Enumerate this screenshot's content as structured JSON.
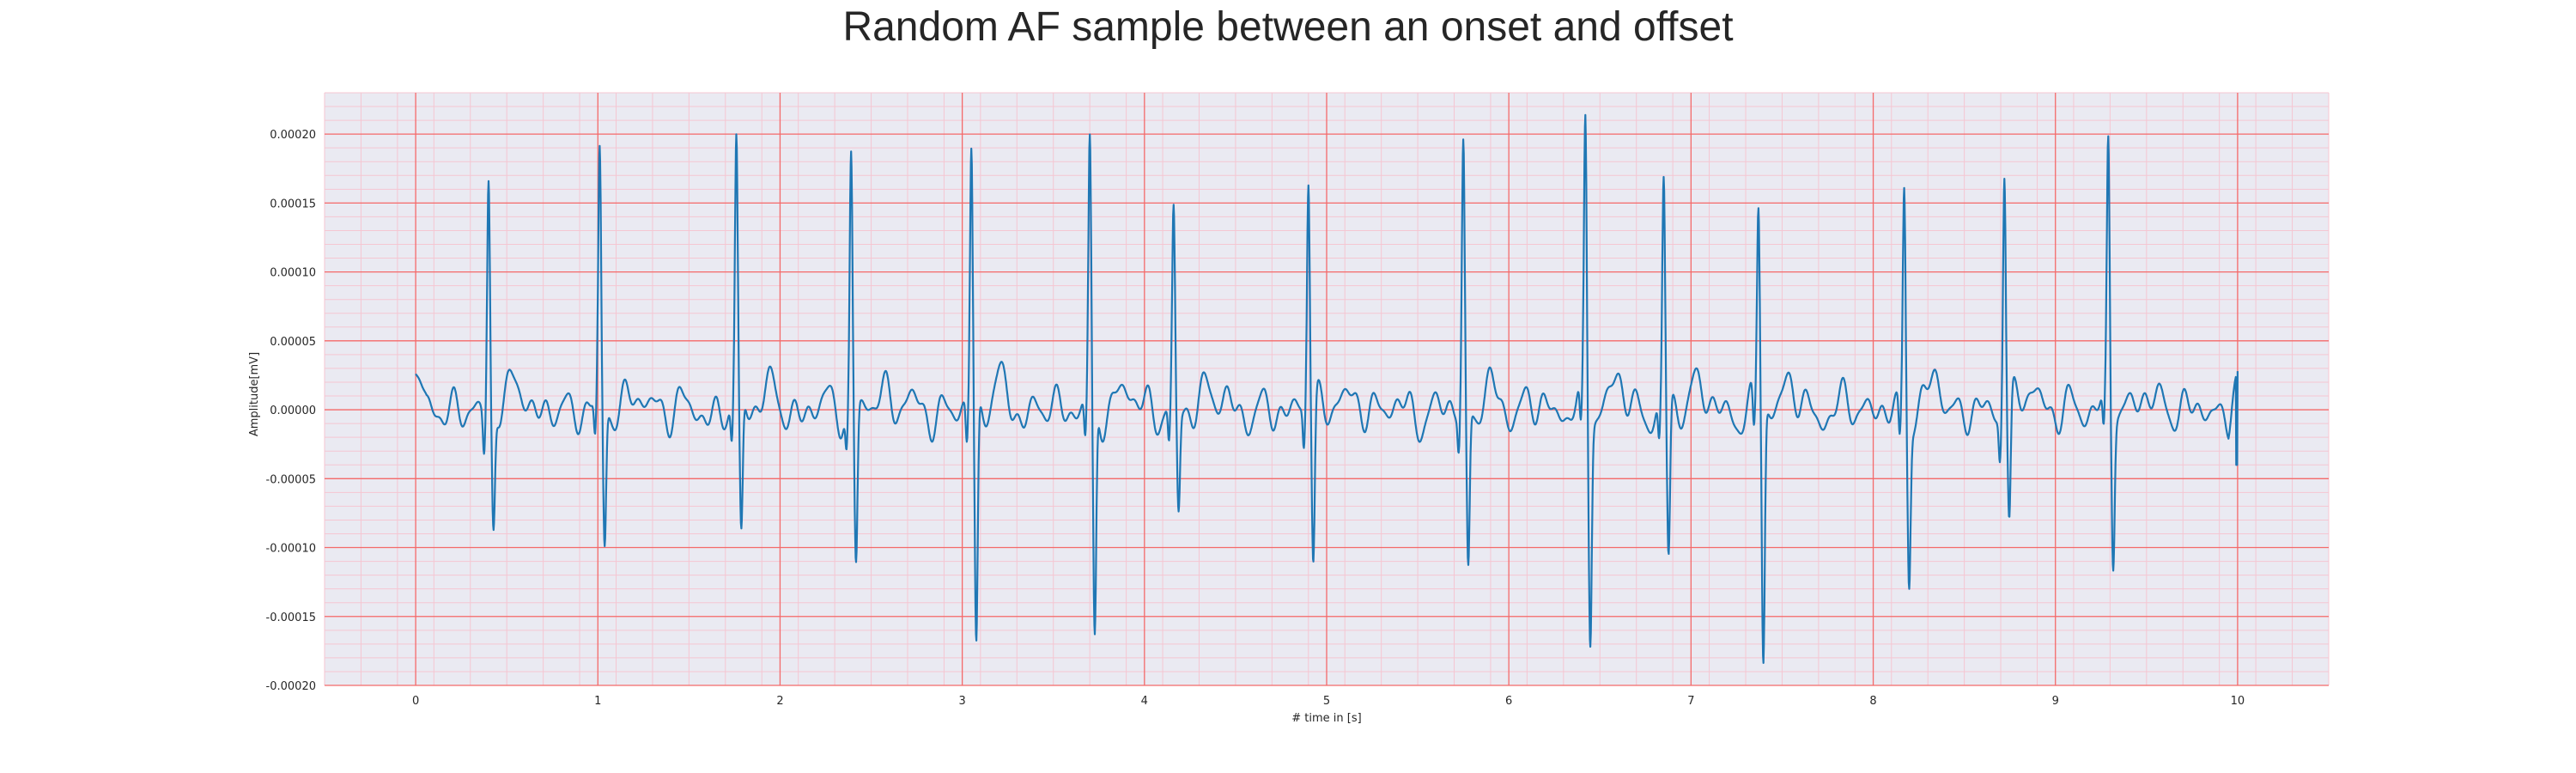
{
  "chart_data": {
    "type": "line",
    "title": "Random AF sample between an onset and offset",
    "xlabel": "# time in [s]",
    "ylabel": "Amplitude[mV]",
    "xlim": [
      -0.5,
      10.5
    ],
    "ylim": [
      -0.0002,
      0.00023
    ],
    "x_ticks": [
      0,
      1,
      2,
      3,
      4,
      5,
      6,
      7,
      8,
      9,
      10
    ],
    "x_tick_labels": [
      "0",
      "1",
      "2",
      "3",
      "4",
      "5",
      "6",
      "7",
      "8",
      "9",
      "10"
    ],
    "y_ticks": [
      -0.0002,
      -0.00015,
      -0.0001,
      -5e-05,
      0,
      5e-05,
      0.0001,
      0.00015,
      0.0002
    ],
    "y_tick_labels": [
      "-0.00020",
      "-0.00015",
      "-0.00010",
      "-0.00005",
      "0.00000",
      "0.00005",
      "0.00010",
      "0.00015",
      "0.00020"
    ],
    "grid": "major red, minor pink",
    "series": [
      {
        "color": "#1f77b4",
        "x_start": 0,
        "x_end": 10,
        "baseline_start": 2.6e-05,
        "baseline_end": 2.8e-05,
        "beats": [
          {
            "t": 0.4,
            "r": 0.000172,
            "s": -8.5e-05
          },
          {
            "t": 1.01,
            "r": 0.000175,
            "s": -0.000104
          },
          {
            "t": 1.76,
            "r": 0.000187,
            "s": -0.000102
          },
          {
            "t": 2.39,
            "r": 0.000186,
            "s": -0.000112
          },
          {
            "t": 3.05,
            "r": 0.000193,
            "s": -0.000176
          },
          {
            "t": 3.7,
            "r": 0.000189,
            "s": -0.000173
          },
          {
            "t": 4.16,
            "r": 0.000137,
            "s": -7.6e-05
          },
          {
            "t": 4.9,
            "r": 0.000167,
            "s": -0.000116
          },
          {
            "t": 5.75,
            "r": 0.000186,
            "s": -0.000119
          },
          {
            "t": 6.42,
            "r": 0.000213,
            "s": -0.000156
          },
          {
            "t": 6.85,
            "r": 0.000166,
            "s": -0.000111
          },
          {
            "t": 7.37,
            "r": 0.000148,
            "s": -0.000184
          },
          {
            "t": 8.17,
            "r": 0.000166,
            "s": -0.000115
          },
          {
            "t": 8.72,
            "r": 0.00018,
            "s": -8.6e-05
          },
          {
            "t": 9.29,
            "r": 0.000188,
            "s": -0.000107
          }
        ]
      }
    ]
  }
}
